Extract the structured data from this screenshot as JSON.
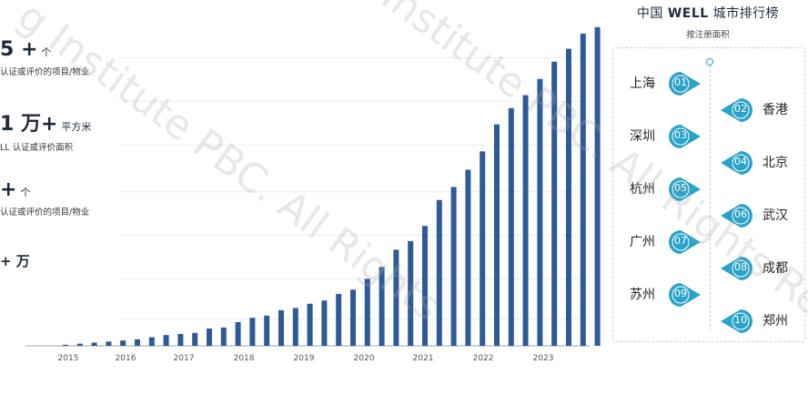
{
  "stats": [
    {
      "number": "5 +",
      "unit": "个",
      "desc": "认证或评价的项目/物业"
    },
    {
      "number": "1 万+",
      "unit": "平方米",
      "desc": "LL 认证或评价面积"
    },
    {
      "number": "+",
      "unit": "个",
      "desc": "认证或评价的项目/物业"
    },
    {
      "number": "+ 万",
      "unit": "",
      "desc": ""
    }
  ],
  "chart_data": {
    "type": "bar",
    "title": "",
    "xlabel": "",
    "ylabel": "",
    "x_tick_labels": [
      "2015",
      "2016",
      "2017",
      "2018",
      "2019",
      "2020",
      "2021",
      "2022",
      "2023"
    ],
    "values": [
      1,
      2,
      3,
      4,
      5,
      6,
      8,
      10,
      11,
      12,
      16,
      17,
      22,
      26,
      28,
      33,
      35,
      39,
      42,
      48,
      52,
      62,
      73,
      89,
      97,
      111,
      135,
      147,
      163,
      180,
      205,
      220,
      232,
      247,
      263,
      275,
      289,
      295,
      306
    ],
    "ylim": [
      0,
      310
    ],
    "grid": true,
    "color": "#2d5a98"
  },
  "ranking": {
    "title_prefix": "中国",
    "title_bold": "WELL",
    "title_suffix": "城市排行榜",
    "subtitle": "按注册面积",
    "accent_color": "#2aa3c9",
    "items": [
      {
        "rank": "01",
        "city": "上海",
        "side": "left"
      },
      {
        "rank": "02",
        "city": "香港",
        "side": "right"
      },
      {
        "rank": "03",
        "city": "深圳",
        "side": "left"
      },
      {
        "rank": "04",
        "city": "北京",
        "side": "right"
      },
      {
        "rank": "05",
        "city": "杭州",
        "side": "left"
      },
      {
        "rank": "06",
        "city": "武汉",
        "side": "right"
      },
      {
        "rank": "07",
        "city": "广州",
        "side": "left"
      },
      {
        "rank": "08",
        "city": "成都",
        "side": "right"
      },
      {
        "rank": "09",
        "city": "苏州",
        "side": "left"
      },
      {
        "rank": "10",
        "city": "郑州",
        "side": "right"
      }
    ]
  }
}
